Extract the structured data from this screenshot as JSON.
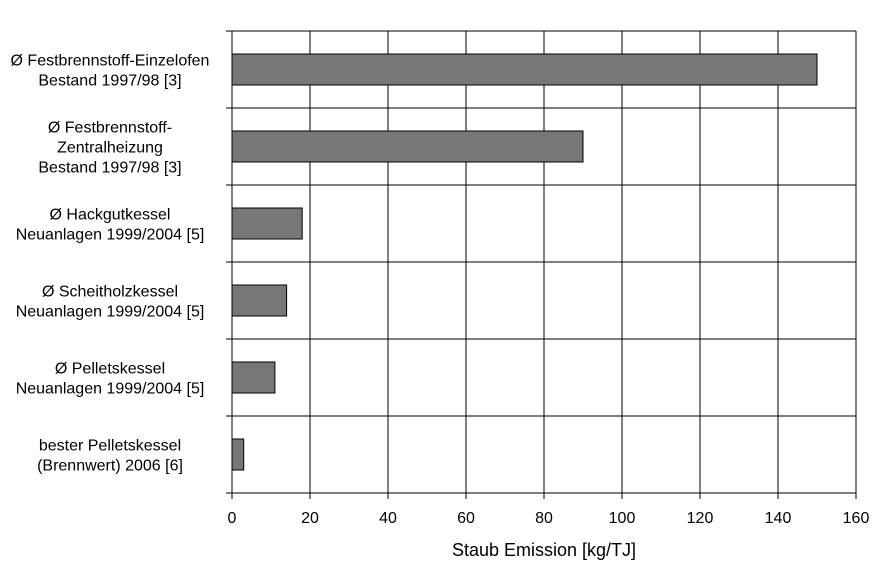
{
  "chart_data": {
    "type": "bar",
    "orientation": "horizontal",
    "categories": [
      [
        "Ø Festbrennstoff-Einzelofen",
        "Bestand 1997/98 [3]"
      ],
      [
        "Ø Festbrennstoff-",
        "Zentralheizung",
        "Bestand 1997/98 [3]"
      ],
      [
        "Ø Hackgutkessel",
        "Neuanlagen 1999/2004 [5]"
      ],
      [
        "Ø Scheitholzkessel",
        "Neuanlagen 1999/2004 [5]"
      ],
      [
        "Ø Pelletskessel",
        "Neuanlagen 1999/2004 [5]"
      ],
      [
        "bester Pelletskessel",
        "(Brennwert) 2006 [6]"
      ]
    ],
    "values": [
      150,
      90,
      18,
      14,
      11,
      3
    ],
    "xlabel": "Staub Emission [kg/TJ]",
    "xlim": [
      0,
      160
    ],
    "xticks": [
      0,
      20,
      40,
      60,
      80,
      100,
      120,
      140,
      160
    ],
    "grid": true,
    "legend": "none",
    "colors": {
      "bar": "#777777",
      "bar_stroke": "#000000",
      "grid": "#000000"
    }
  }
}
